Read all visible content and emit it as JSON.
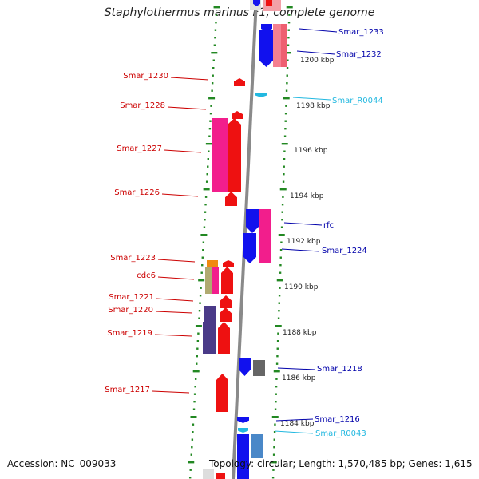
{
  "title": "Staphylothermus marinus F1, complete genome",
  "footer": {
    "accession": "Accession: NC_009033",
    "topology": "Topology: circular; Length: 1,570,485 bp; Genes: 1,615"
  },
  "colors": {
    "left_label": "#cc0000",
    "right_label": "#0000aa",
    "rna_label": "#22b8e0",
    "forward_gene": "#ee1111",
    "reverse_gene": "#1111ee",
    "pink_gene": "#f21e8c",
    "purple_gene": "#4a3a88",
    "backbone": "#888888",
    "tick": "#228822"
  },
  "scale_labels": [
    {
      "kbp": 1200,
      "label": "1200 kbp"
    },
    {
      "kbp": 1198,
      "label": "1198 kbp"
    },
    {
      "kbp": 1196,
      "label": "1196 kbp"
    },
    {
      "kbp": 1194,
      "label": "1194 kbp"
    },
    {
      "kbp": 1192,
      "label": "1192 kbp"
    },
    {
      "kbp": 1190,
      "label": "1190 kbp"
    },
    {
      "kbp": 1188,
      "label": "1188 kbp"
    },
    {
      "kbp": 1186,
      "label": "1186 kbp"
    },
    {
      "kbp": 1184,
      "label": "1184 kbp"
    }
  ],
  "left_labels": [
    "Smar_1230",
    "Smar_1228",
    "Smar_1227",
    "Smar_1226",
    "Smar_1223",
    "cdc6",
    "Smar_1221",
    "Smar_1220",
    "Smar_1219",
    "Smar_1217"
  ],
  "right_labels": [
    "Smar_1233",
    "Smar_1232",
    "Smar_R0044",
    "rfc",
    "Smar_1224",
    "Smar_1218",
    "Smar_1216",
    "Smar_R0043"
  ]
}
